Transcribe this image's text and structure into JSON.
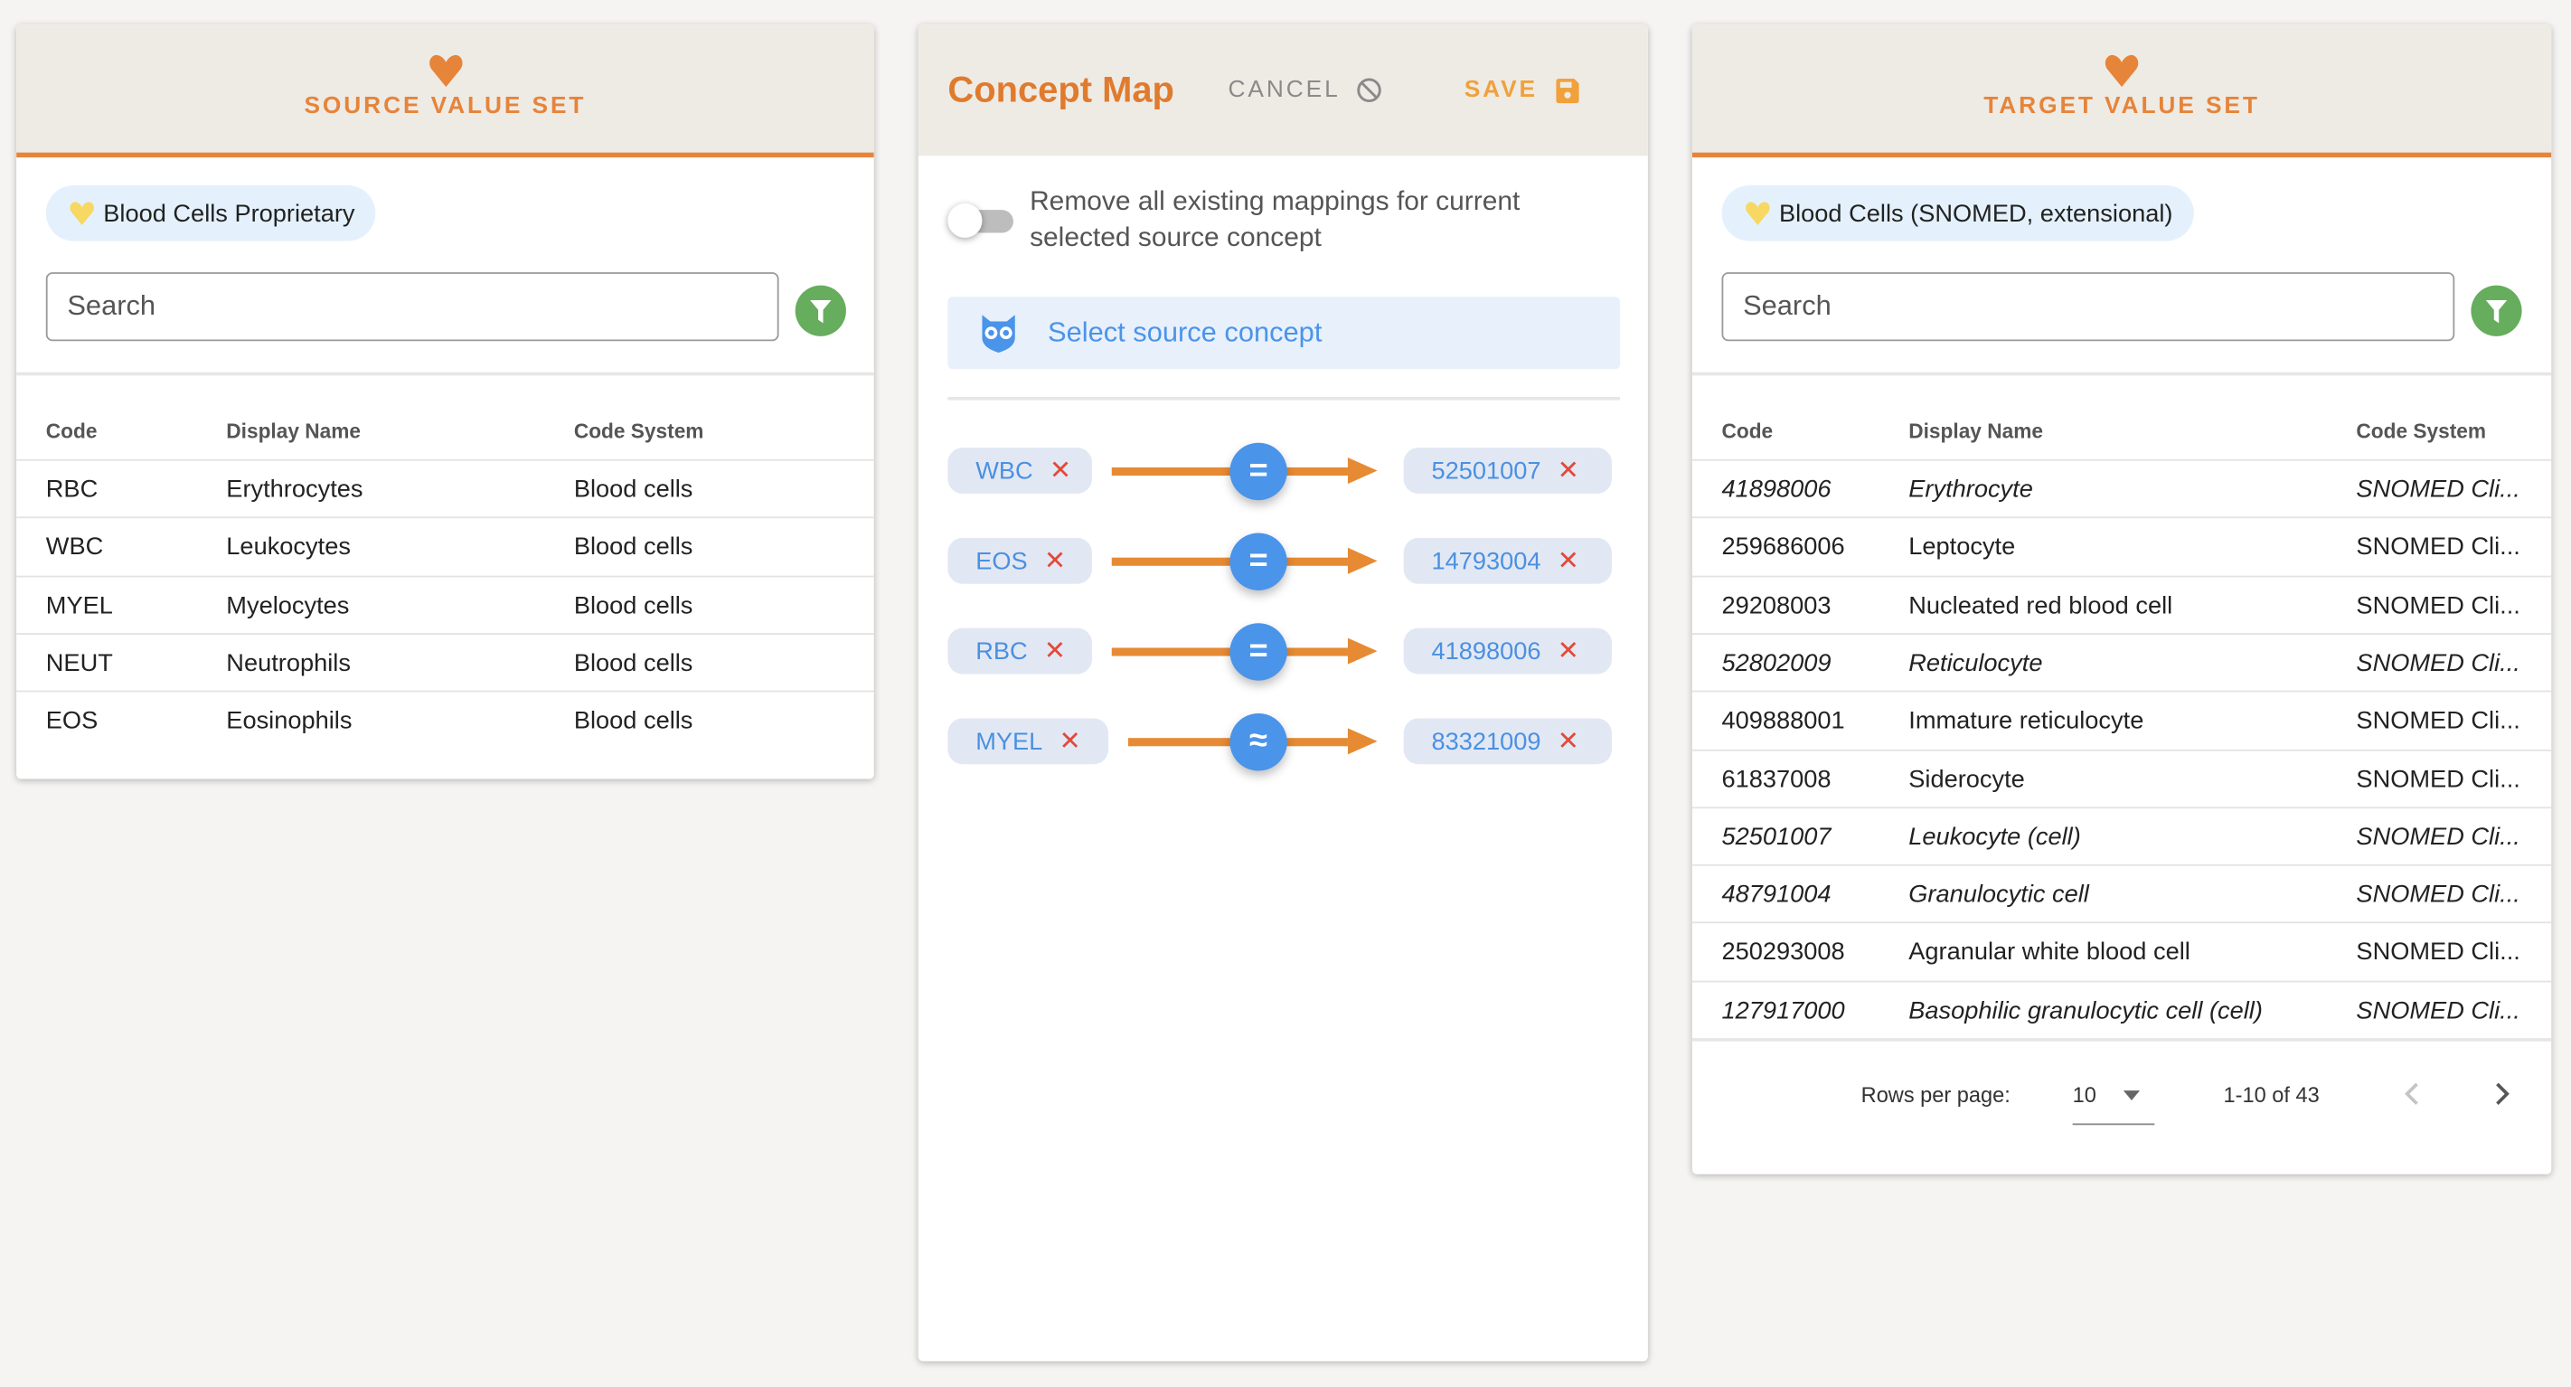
{
  "source": {
    "title": "SOURCE VALUE SET",
    "chip_label": "Blood Cells Proprietary",
    "search_placeholder": "Search",
    "columns": [
      "Code",
      "Display Name",
      "Code System"
    ],
    "rows": [
      {
        "code": "RBC",
        "display": "Erythrocytes",
        "system": "Blood cells"
      },
      {
        "code": "WBC",
        "display": "Leukocytes",
        "system": "Blood cells"
      },
      {
        "code": "MYEL",
        "display": "Myelocytes",
        "system": "Blood cells"
      },
      {
        "code": "NEUT",
        "display": "Neutrophils",
        "system": "Blood cells"
      },
      {
        "code": "EOS",
        "display": "Eosinophils",
        "system": "Blood cells"
      }
    ]
  },
  "concept_map": {
    "title": "Concept Map",
    "cancel_label": "CANCEL",
    "save_label": "SAVE",
    "toggle_label": "Remove all existing mappings for current selected source concept",
    "toggle_on": false,
    "select_label": "Select source concept",
    "mappings": [
      {
        "source": "WBC",
        "relation": "=",
        "target": "52501007"
      },
      {
        "source": "EOS",
        "relation": "=",
        "target": "14793004"
      },
      {
        "source": "RBC",
        "relation": "=",
        "target": "41898006"
      },
      {
        "source": "MYEL",
        "relation": "≈",
        "target": "83321009"
      }
    ],
    "remove_glyph": "✕"
  },
  "target": {
    "title": "TARGET VALUE SET",
    "chip_label": "Blood Cells (SNOMED, extensional)",
    "search_placeholder": "Search",
    "columns": [
      "Code",
      "Display Name",
      "Code System"
    ],
    "rows": [
      {
        "code": "41898006",
        "display": "Erythrocyte",
        "system": "SNOMED Cli...",
        "italic": true
      },
      {
        "code": "259686006",
        "display": "Leptocyte",
        "system": "SNOMED Cli...",
        "italic": false
      },
      {
        "code": "29208003",
        "display": "Nucleated red blood cell",
        "system": "SNOMED Cli...",
        "italic": false
      },
      {
        "code": "52802009",
        "display": "Reticulocyte",
        "system": "SNOMED Cli...",
        "italic": true
      },
      {
        "code": "409888001",
        "display": "Immature reticulocyte",
        "system": "SNOMED Cli...",
        "italic": false
      },
      {
        "code": "61837008",
        "display": "Siderocyte",
        "system": "SNOMED Cli...",
        "italic": false
      },
      {
        "code": "52501007",
        "display": "Leukocyte (cell)",
        "system": "SNOMED Cli...",
        "italic": true
      },
      {
        "code": "48791004",
        "display": "Granulocytic cell",
        "system": "SNOMED Cli...",
        "italic": true
      },
      {
        "code": "250293008",
        "display": "Agranular white blood cell",
        "system": "SNOMED Cli...",
        "italic": false
      },
      {
        "code": "127917000",
        "display": "Basophilic granulocytic cell (cell)",
        "system": "SNOMED Cli...",
        "italic": true
      }
    ],
    "pagination": {
      "rows_per_page_label": "Rows per page:",
      "rows_per_page": "10",
      "range": "1-10 of 43"
    }
  },
  "colors": {
    "accent": "#e6843a",
    "header_bg": "#eeebe5",
    "relation": "#4a94ea",
    "remove": "#e2493b",
    "filter": "#66ad5e",
    "chip_source": "#f7d862",
    "chip_target": "#f7d862"
  }
}
